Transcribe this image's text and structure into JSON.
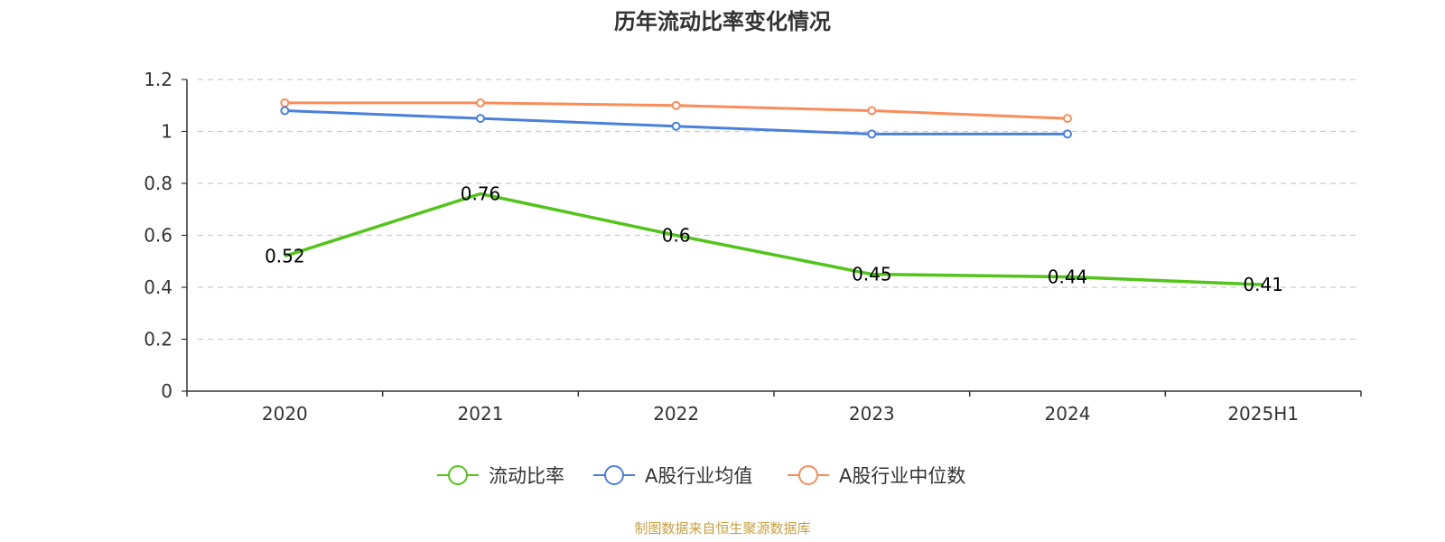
{
  "chart_data": {
    "type": "line",
    "title": "历年流动比率变化情况",
    "categories": [
      "2020",
      "2021",
      "2022",
      "2023",
      "2024",
      "2025H1"
    ],
    "ylim": [
      0,
      1.2
    ],
    "yticks": [
      "0",
      "0.2",
      "0.4",
      "0.6",
      "0.8",
      "1",
      "1.2"
    ],
    "grid": true,
    "legend_position": "bottom",
    "series": [
      {
        "name": "流动比率",
        "color": "#52c41a",
        "values": [
          0.52,
          0.76,
          0.6,
          0.45,
          0.44,
          0.41
        ],
        "labels": [
          "0.52",
          "0.76",
          "0.6",
          "0.45",
          "0.44",
          "0.41"
        ],
        "show_labels": true
      },
      {
        "name": "A股行业均值",
        "color": "#4a7fdc",
        "values": [
          1.08,
          1.05,
          1.02,
          0.99,
          0.99,
          null
        ],
        "show_labels": false
      },
      {
        "name": "A股行业中位数",
        "color": "#fa8c5a",
        "values": [
          1.11,
          1.11,
          1.1,
          1.08,
          1.05,
          null
        ],
        "show_labels": false
      }
    ]
  },
  "source": {
    "text": "制图数据来自恒生聚源数据库",
    "color": "#c8a040"
  }
}
